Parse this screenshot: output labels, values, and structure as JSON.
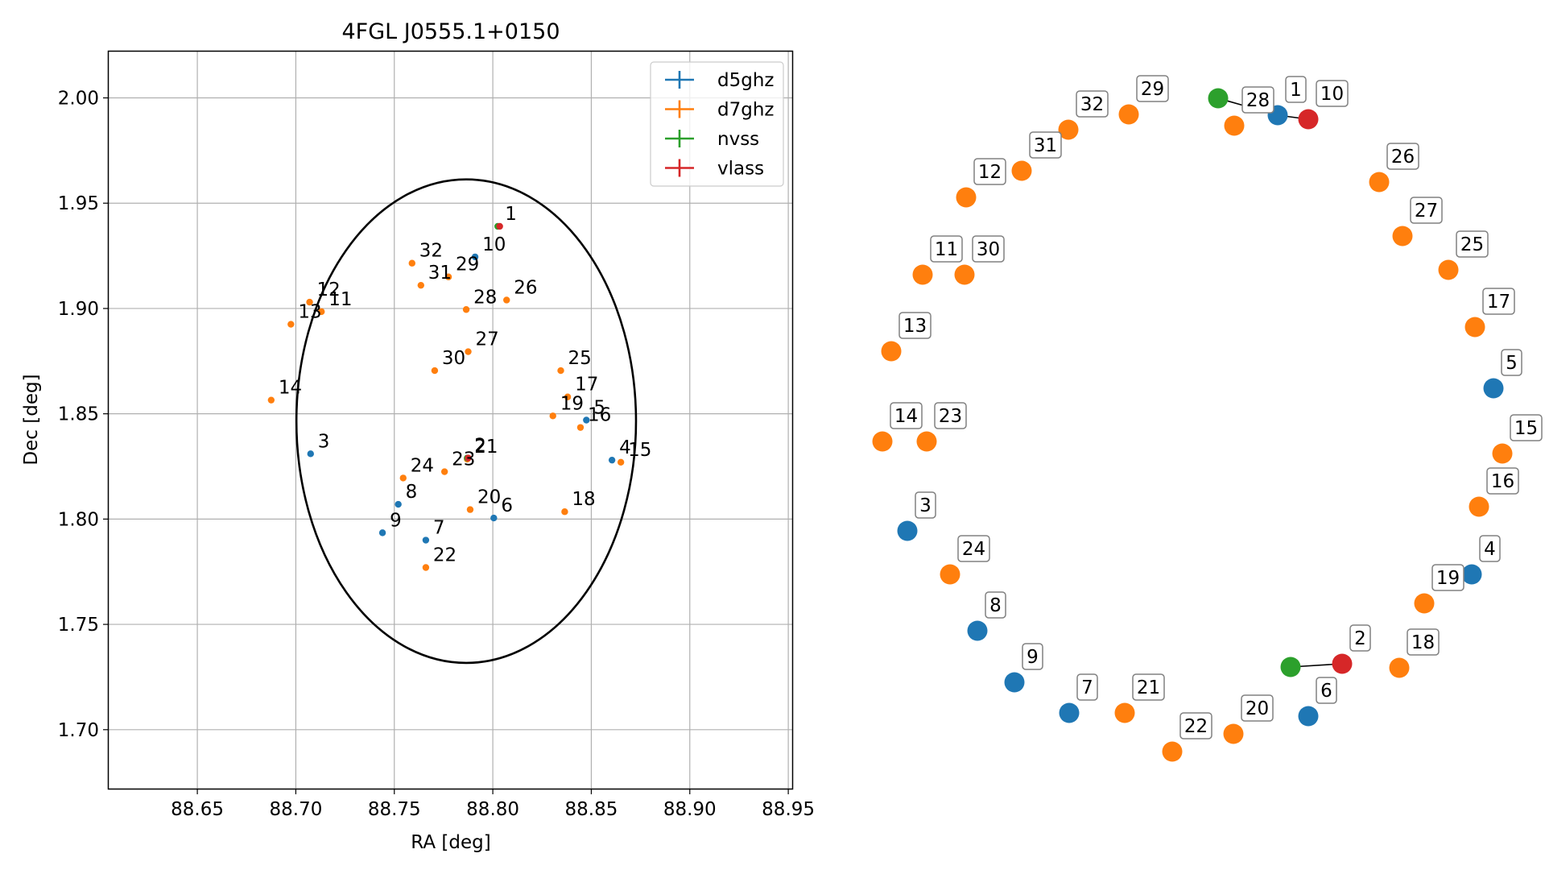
{
  "chart_data": [
    {
      "type": "scatter",
      "title": "4FGL J0555.1+0150",
      "xlabel": "RA [deg]",
      "ylabel": "Dec [deg]",
      "xlim": [
        88.605,
        88.952
      ],
      "ylim": [
        1.672,
        2.022
      ],
      "xticks": [
        "88.65",
        "88.70",
        "88.75",
        "88.80",
        "88.85",
        "88.90",
        "88.95"
      ],
      "yticks": [
        "1.70",
        "1.75",
        "1.80",
        "1.85",
        "1.90",
        "1.95",
        "2.00"
      ],
      "grid": true,
      "legend_position": "top-right",
      "ellipse": {
        "center": [
          88.7865,
          1.8465
        ],
        "ra_semi_axis": 0.0862,
        "dec_semi_axis": 0.1148,
        "color": "#000000"
      },
      "series": [
        {
          "name": "d5ghz",
          "color": "#1f77b4",
          "points": [
            {
              "label": "3",
              "x": 88.7075,
              "y": 1.831
            },
            {
              "label": "4",
              "x": 88.8605,
              "y": 1.828
            },
            {
              "label": "5",
              "x": 88.8475,
              "y": 1.847
            },
            {
              "label": "6",
              "x": 88.8005,
              "y": 1.8005
            },
            {
              "label": "7",
              "x": 88.766,
              "y": 1.79
            },
            {
              "label": "8",
              "x": 88.752,
              "y": 1.807
            },
            {
              "label": "9",
              "x": 88.744,
              "y": 1.7935
            },
            {
              "label": "10",
              "x": 88.791,
              "y": 1.9245
            }
          ]
        },
        {
          "name": "d7ghz",
          "color": "#ff7f0e",
          "points": [
            {
              "label": "11",
              "x": 88.713,
              "y": 1.8985
            },
            {
              "label": "12",
              "x": 88.707,
              "y": 1.903
            },
            {
              "label": "13",
              "x": 88.6975,
              "y": 1.8925
            },
            {
              "label": "14",
              "x": 88.6875,
              "y": 1.8565
            },
            {
              "label": "15",
              "x": 88.865,
              "y": 1.827
            },
            {
              "label": "16",
              "x": 88.8445,
              "y": 1.8435
            },
            {
              "label": "17",
              "x": 88.838,
              "y": 1.858
            },
            {
              "label": "18",
              "x": 88.8365,
              "y": 1.8035
            },
            {
              "label": "19",
              "x": 88.8305,
              "y": 1.849
            },
            {
              "label": "20",
              "x": 88.7885,
              "y": 1.8045
            },
            {
              "label": "21",
              "x": 88.787,
              "y": 1.8285
            },
            {
              "label": "22",
              "x": 88.766,
              "y": 1.777
            },
            {
              "label": "23",
              "x": 88.7755,
              "y": 1.8225
            },
            {
              "label": "24",
              "x": 88.7545,
              "y": 1.8195
            },
            {
              "label": "25",
              "x": 88.8345,
              "y": 1.8705
            },
            {
              "label": "26",
              "x": 88.807,
              "y": 1.904
            },
            {
              "label": "27",
              "x": 88.7875,
              "y": 1.8795
            },
            {
              "label": "28",
              "x": 88.7865,
              "y": 1.8995
            },
            {
              "label": "29",
              "x": 88.7775,
              "y": 1.915
            },
            {
              "label": "30",
              "x": 88.7705,
              "y": 1.8705
            },
            {
              "label": "31",
              "x": 88.7635,
              "y": 1.911
            },
            {
              "label": "32",
              "x": 88.759,
              "y": 1.9215
            }
          ]
        },
        {
          "name": "nvss",
          "color": "#2ca02c",
          "points": [
            {
              "label": "1",
              "x": 88.8025,
              "y": 1.939
            },
            {
              "label": "2",
              "x": 88.787,
              "y": 1.829
            }
          ]
        },
        {
          "name": "vlass",
          "color": "#d62728",
          "points": [
            {
              "label": "1",
              "x": 88.8035,
              "y": 1.939
            },
            {
              "label": "2",
              "x": 88.7875,
              "y": 1.829
            }
          ]
        }
      ]
    },
    {
      "type": "scatter",
      "title": "",
      "nodes": [
        {
          "label": "",
          "series": "nvss",
          "color": "#2ca02c"
        },
        {
          "label": "1",
          "series": "d5ghz",
          "color": "#1f77b4"
        },
        {
          "label": "28",
          "series": "d7ghz",
          "color": "#ff7f0e"
        },
        {
          "label": "10",
          "series": "vlass",
          "color": "#d62728"
        },
        {
          "label": "29",
          "series": "d7ghz",
          "color": "#ff7f0e"
        },
        {
          "label": "32",
          "series": "d7ghz",
          "color": "#ff7f0e"
        },
        {
          "label": "31",
          "series": "d7ghz",
          "color": "#ff7f0e"
        },
        {
          "label": "12",
          "series": "d7ghz",
          "color": "#ff7f0e"
        },
        {
          "label": "26",
          "series": "d7ghz",
          "color": "#ff7f0e"
        },
        {
          "label": "27",
          "series": "d7ghz",
          "color": "#ff7f0e"
        },
        {
          "label": "25",
          "series": "d7ghz",
          "color": "#ff7f0e"
        },
        {
          "label": "11",
          "series": "d7ghz",
          "color": "#ff7f0e"
        },
        {
          "label": "30",
          "series": "d7ghz",
          "color": "#ff7f0e"
        },
        {
          "label": "17",
          "series": "d7ghz",
          "color": "#ff7f0e"
        },
        {
          "label": "13",
          "series": "d7ghz",
          "color": "#ff7f0e"
        },
        {
          "label": "5",
          "series": "d5ghz",
          "color": "#1f77b4"
        },
        {
          "label": "14",
          "series": "d7ghz",
          "color": "#ff7f0e"
        },
        {
          "label": "23",
          "series": "d7ghz",
          "color": "#ff7f0e"
        },
        {
          "label": "15",
          "series": "d7ghz",
          "color": "#ff7f0e"
        },
        {
          "label": "16",
          "series": "d7ghz",
          "color": "#ff7f0e"
        },
        {
          "label": "3",
          "series": "d5ghz",
          "color": "#1f77b4"
        },
        {
          "label": "24",
          "series": "d7ghz",
          "color": "#ff7f0e"
        },
        {
          "label": "4",
          "series": "d5ghz",
          "color": "#1f77b4"
        },
        {
          "label": "19",
          "series": "d7ghz",
          "color": "#ff7f0e"
        },
        {
          "label": "8",
          "series": "d5ghz",
          "color": "#1f77b4"
        },
        {
          "label": "",
          "series": "nvss",
          "color": "#2ca02c"
        },
        {
          "label": "2",
          "series": "vlass",
          "color": "#d62728"
        },
        {
          "label": "18",
          "series": "d7ghz",
          "color": "#ff7f0e"
        },
        {
          "label": "9",
          "series": "d5ghz",
          "color": "#1f77b4"
        },
        {
          "label": "7",
          "series": "d5ghz",
          "color": "#1f77b4"
        },
        {
          "label": "21",
          "series": "d7ghz",
          "color": "#ff7f0e"
        },
        {
          "label": "6",
          "series": "d5ghz",
          "color": "#1f77b4"
        },
        {
          "label": "20",
          "series": "d7ghz",
          "color": "#ff7f0e"
        },
        {
          "label": "22",
          "series": "d7ghz",
          "color": "#ff7f0e"
        }
      ],
      "edges": [
        [
          0,
          1
        ],
        [
          1,
          3
        ],
        [
          25,
          26
        ]
      ]
    }
  ]
}
